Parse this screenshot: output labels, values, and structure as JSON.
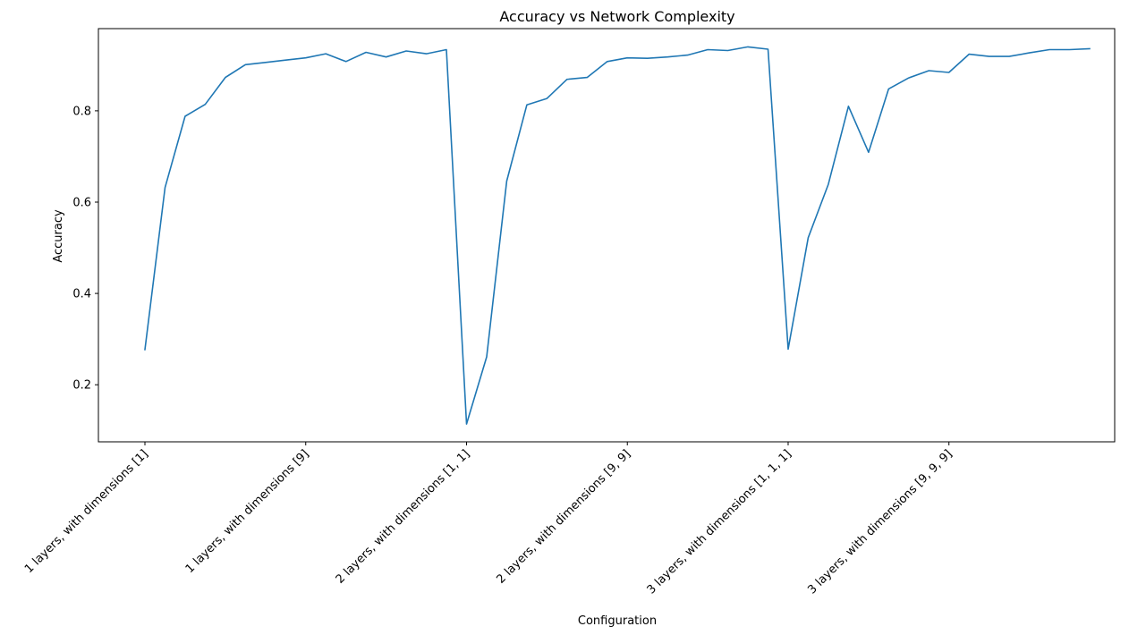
{
  "chart_data": {
    "type": "line",
    "title": "Accuracy vs Network Complexity",
    "xlabel": "Configuration",
    "ylabel": "Accuracy",
    "ylim": [
      0.075,
      0.98
    ],
    "x_tick_labels": [
      "1 layers, with dimensions [1]",
      "1 layers, with dimensions [9]",
      "2 layers, with dimensions [1, 1]",
      "2 layers, with dimensions [9, 9]",
      "3 layers, with dimensions [1, 1, 1]",
      "3 layers, with dimensions [9, 9, 9]"
    ],
    "x_tick_positions": [
      0,
      8,
      16,
      24,
      32,
      40
    ],
    "y_ticks": [
      0.2,
      0.4,
      0.6,
      0.8
    ],
    "grid": false,
    "series": [
      {
        "color": "#1f77b4",
        "values": [
          0.277,
          0.632,
          0.788,
          0.814,
          0.873,
          0.901,
          0.906,
          0.911,
          0.916,
          0.925,
          0.908,
          0.928,
          0.918,
          0.931,
          0.925,
          0.934,
          0.114,
          0.261,
          0.646,
          0.813,
          0.827,
          0.869,
          0.873,
          0.908,
          0.916,
          0.915,
          0.918,
          0.922,
          0.934,
          0.932,
          0.94,
          0.935,
          0.278,
          0.522,
          0.639,
          0.81,
          0.709,
          0.848,
          0.872,
          0.888,
          0.884,
          0.924,
          0.919,
          0.919,
          0.927,
          0.934,
          0.934,
          0.936
        ]
      }
    ]
  }
}
